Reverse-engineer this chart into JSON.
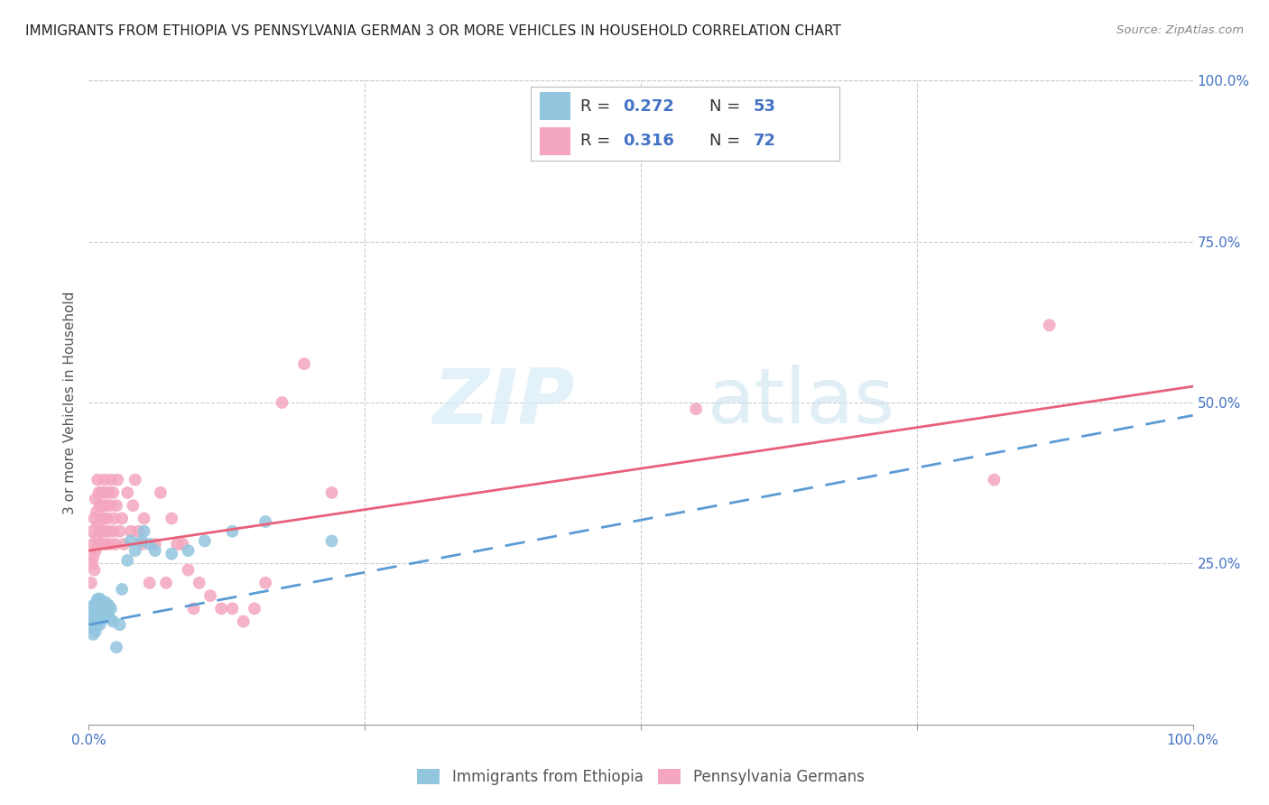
{
  "title": "IMMIGRANTS FROM ETHIOPIA VS PENNSYLVANIA GERMAN 3 OR MORE VEHICLES IN HOUSEHOLD CORRELATION CHART",
  "source": "Source: ZipAtlas.com",
  "ylabel": "3 or more Vehicles in Household",
  "ytick_vals": [
    0.0,
    0.25,
    0.5,
    0.75,
    1.0
  ],
  "ytick_labels_right": [
    "",
    "25.0%",
    "50.0%",
    "75.0%",
    "100.0%"
  ],
  "xlim": [
    0.0,
    1.0
  ],
  "ylim": [
    0.0,
    1.0
  ],
  "blue_color": "#92c5de",
  "pink_color": "#f4a6be",
  "blue_line_color": "#5b9bd5",
  "pink_line_color": "#e8607a",
  "label1": "Immigrants from Ethiopia",
  "label2": "Pennsylvania Germans",
  "watermark_zip": "ZIP",
  "watermark_atlas": "atlas",
  "legend_entries": [
    {
      "color": "#92c5de",
      "r": "0.272",
      "n": "53"
    },
    {
      "color": "#f4a6be",
      "r": "0.316",
      "n": "72"
    }
  ],
  "scatter_blue": {
    "x": [
      0.002,
      0.003,
      0.003,
      0.004,
      0.004,
      0.005,
      0.005,
      0.005,
      0.006,
      0.006,
      0.006,
      0.007,
      0.007,
      0.007,
      0.008,
      0.008,
      0.008,
      0.009,
      0.009,
      0.01,
      0.01,
      0.01,
      0.011,
      0.011,
      0.012,
      0.012,
      0.013,
      0.013,
      0.014,
      0.015,
      0.015,
      0.016,
      0.017,
      0.018,
      0.019,
      0.02,
      0.022,
      0.025,
      0.028,
      0.03,
      0.035,
      0.038,
      0.042,
      0.048,
      0.05,
      0.055,
      0.06,
      0.075,
      0.09,
      0.105,
      0.13,
      0.16,
      0.22
    ],
    "y": [
      0.155,
      0.165,
      0.175,
      0.14,
      0.185,
      0.16,
      0.17,
      0.18,
      0.145,
      0.165,
      0.185,
      0.155,
      0.175,
      0.19,
      0.16,
      0.18,
      0.195,
      0.165,
      0.185,
      0.155,
      0.175,
      0.195,
      0.165,
      0.185,
      0.17,
      0.19,
      0.165,
      0.185,
      0.175,
      0.17,
      0.19,
      0.185,
      0.175,
      0.185,
      0.165,
      0.18,
      0.16,
      0.12,
      0.155,
      0.21,
      0.255,
      0.285,
      0.27,
      0.285,
      0.3,
      0.28,
      0.27,
      0.265,
      0.27,
      0.285,
      0.3,
      0.315,
      0.285
    ]
  },
  "scatter_pink": {
    "x": [
      0.002,
      0.003,
      0.003,
      0.004,
      0.004,
      0.005,
      0.005,
      0.006,
      0.006,
      0.007,
      0.007,
      0.008,
      0.008,
      0.009,
      0.009,
      0.01,
      0.01,
      0.011,
      0.012,
      0.012,
      0.013,
      0.013,
      0.014,
      0.014,
      0.015,
      0.015,
      0.016,
      0.016,
      0.017,
      0.018,
      0.018,
      0.019,
      0.02,
      0.02,
      0.022,
      0.022,
      0.023,
      0.024,
      0.025,
      0.026,
      0.028,
      0.03,
      0.032,
      0.035,
      0.038,
      0.04,
      0.042,
      0.045,
      0.048,
      0.05,
      0.055,
      0.06,
      0.065,
      0.07,
      0.075,
      0.08,
      0.085,
      0.09,
      0.095,
      0.1,
      0.11,
      0.12,
      0.13,
      0.14,
      0.15,
      0.16,
      0.175,
      0.195,
      0.22,
      0.55,
      0.82,
      0.87
    ],
    "y": [
      0.22,
      0.25,
      0.3,
      0.26,
      0.28,
      0.24,
      0.32,
      0.27,
      0.35,
      0.29,
      0.33,
      0.31,
      0.38,
      0.28,
      0.36,
      0.3,
      0.34,
      0.32,
      0.28,
      0.36,
      0.3,
      0.34,
      0.32,
      0.38,
      0.3,
      0.36,
      0.28,
      0.34,
      0.32,
      0.3,
      0.36,
      0.28,
      0.34,
      0.38,
      0.3,
      0.36,
      0.32,
      0.28,
      0.34,
      0.38,
      0.3,
      0.32,
      0.28,
      0.36,
      0.3,
      0.34,
      0.38,
      0.3,
      0.28,
      0.32,
      0.22,
      0.28,
      0.36,
      0.22,
      0.32,
      0.28,
      0.28,
      0.24,
      0.18,
      0.22,
      0.2,
      0.18,
      0.18,
      0.16,
      0.18,
      0.22,
      0.5,
      0.56,
      0.36,
      0.49,
      0.38,
      0.62
    ]
  },
  "trend_blue": {
    "x_start": 0.0,
    "x_end": 1.0,
    "y_start": 0.155,
    "y_end": 0.48
  },
  "trend_pink": {
    "x_start": 0.0,
    "x_end": 1.0,
    "y_start": 0.27,
    "y_end": 0.525
  }
}
